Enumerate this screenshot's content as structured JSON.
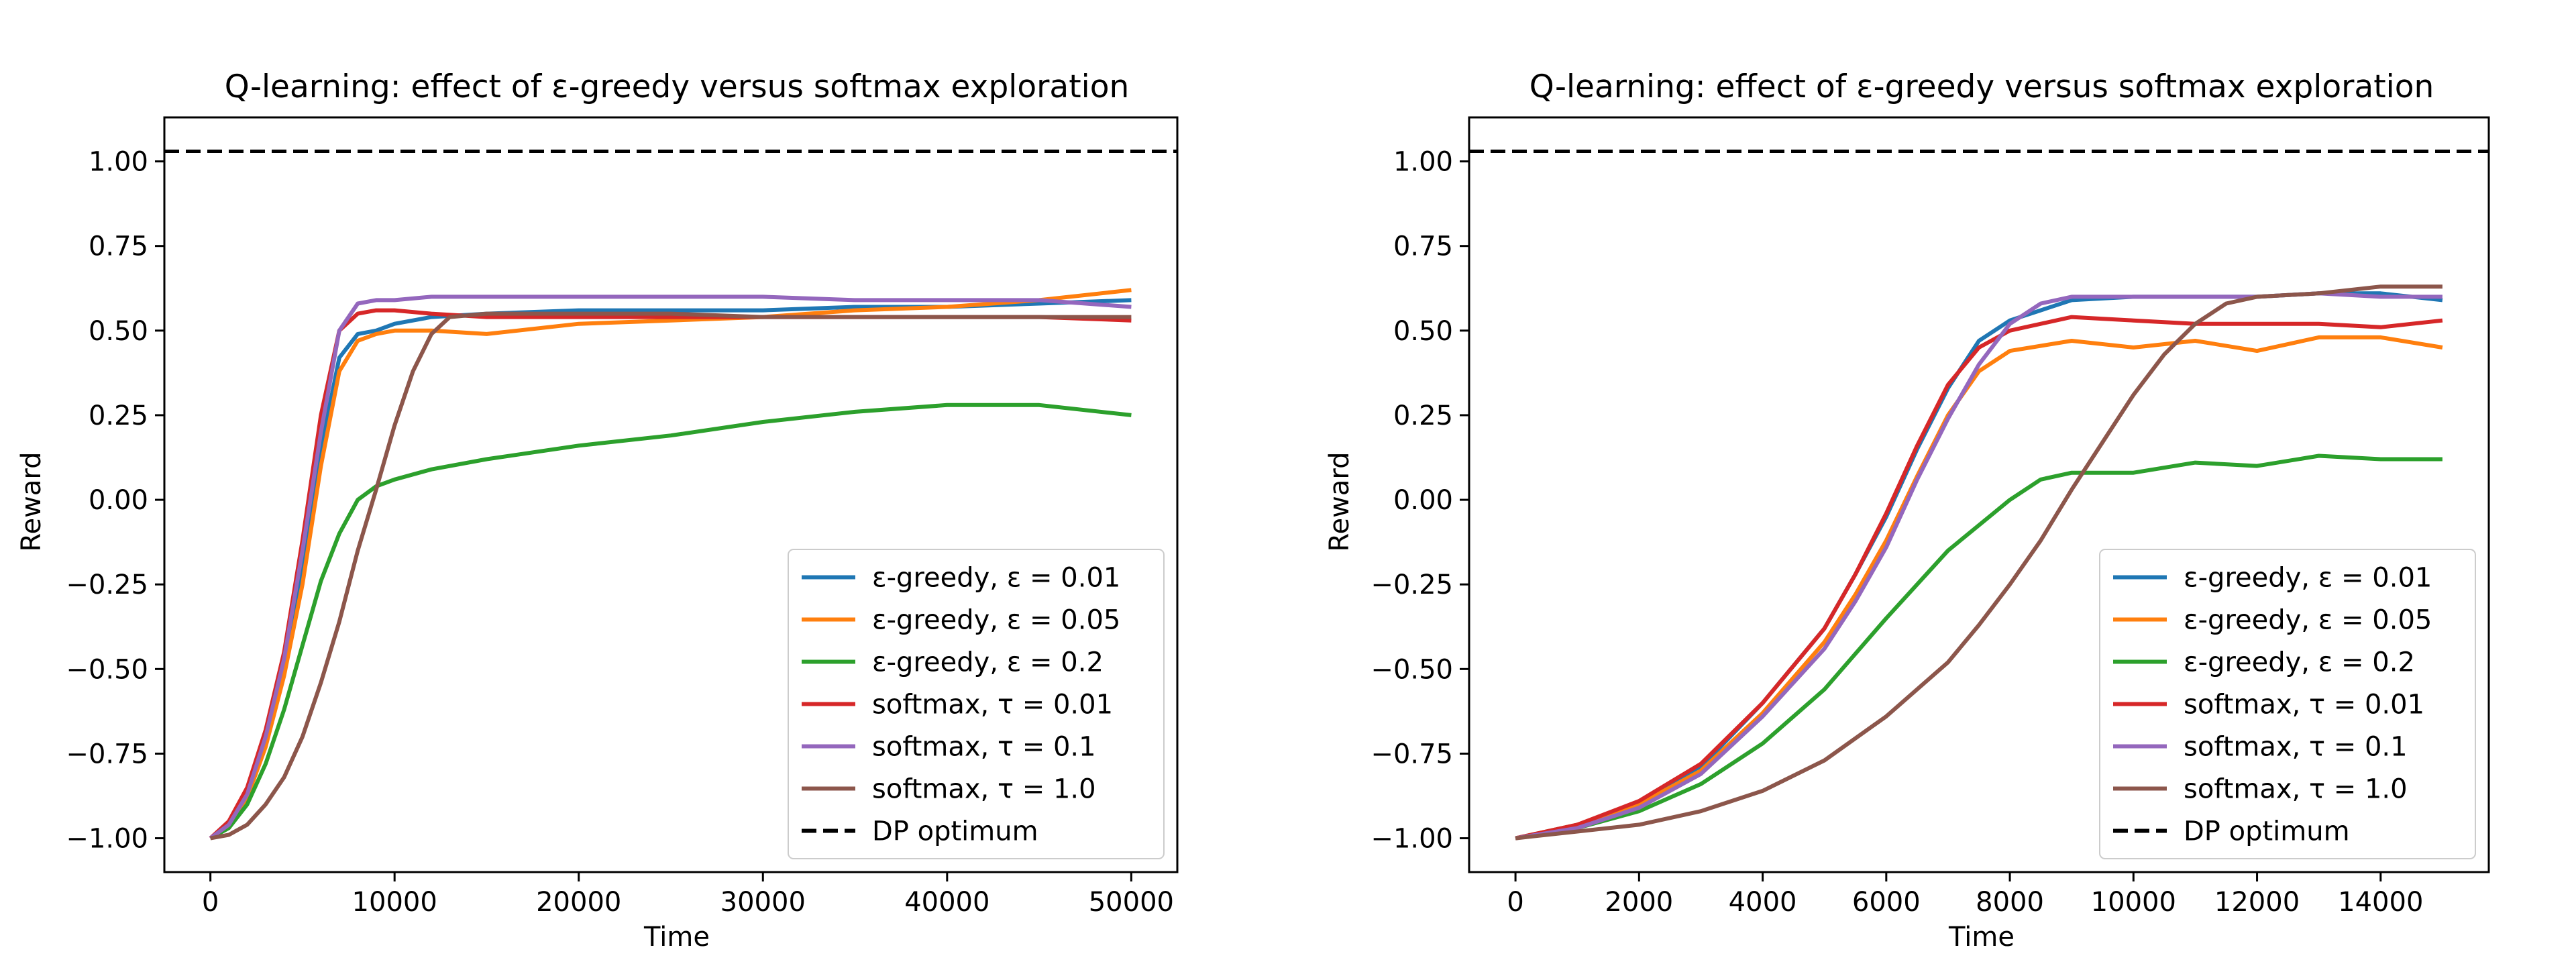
{
  "figure": {
    "background": "#ffffff"
  },
  "chart_data": [
    {
      "type": "line",
      "title": "Q-learning: effect of ε-greedy versus softmax exploration",
      "xlabel": "Time",
      "ylabel": "Reward",
      "xlim": [
        -2500,
        52500
      ],
      "ylim": [
        -1.1,
        1.13
      ],
      "xticks": [
        0,
        10000,
        20000,
        30000,
        40000,
        50000
      ],
      "xtick_labels": [
        "0",
        "10000",
        "20000",
        "30000",
        "40000",
        "50000"
      ],
      "yticks": [
        -1.0,
        -0.75,
        -0.5,
        -0.25,
        0.0,
        0.25,
        0.5,
        0.75,
        1.0
      ],
      "ytick_labels": [
        "−1.00",
        "−0.75",
        "−0.50",
        "−0.25",
        "0.00",
        "0.25",
        "0.50",
        "0.75",
        "1.00"
      ],
      "grid": false,
      "legend_position": "lower-right",
      "reference_line": {
        "name": "DP optimum",
        "y": 1.03,
        "color": "#000000",
        "dashed": true
      },
      "series": [
        {
          "name": "ε-greedy, ε = 0.01",
          "color": "#1f77b4",
          "x": [
            0,
            1000,
            2000,
            3000,
            4000,
            5000,
            6000,
            7000,
            8000,
            9000,
            10000,
            12000,
            15000,
            20000,
            25000,
            30000,
            35000,
            40000,
            45000,
            50000
          ],
          "y": [
            -1.0,
            -0.96,
            -0.88,
            -0.72,
            -0.5,
            -0.2,
            0.15,
            0.42,
            0.49,
            0.5,
            0.52,
            0.54,
            0.55,
            0.56,
            0.56,
            0.56,
            0.57,
            0.57,
            0.58,
            0.59
          ]
        },
        {
          "name": "ε-greedy, ε = 0.05",
          "color": "#ff7f0e",
          "x": [
            0,
            1000,
            2000,
            3000,
            4000,
            5000,
            6000,
            7000,
            8000,
            9000,
            10000,
            12000,
            15000,
            20000,
            25000,
            30000,
            35000,
            40000,
            45000,
            50000
          ],
          "y": [
            -1.0,
            -0.96,
            -0.88,
            -0.73,
            -0.52,
            -0.25,
            0.1,
            0.38,
            0.47,
            0.49,
            0.5,
            0.5,
            0.49,
            0.52,
            0.53,
            0.54,
            0.56,
            0.57,
            0.59,
            0.62
          ]
        },
        {
          "name": "ε-greedy, ε = 0.2",
          "color": "#2ca02c",
          "x": [
            0,
            1000,
            2000,
            3000,
            4000,
            5000,
            6000,
            7000,
            8000,
            9000,
            10000,
            12000,
            15000,
            20000,
            25000,
            30000,
            35000,
            40000,
            45000,
            50000
          ],
          "y": [
            -1.0,
            -0.97,
            -0.9,
            -0.78,
            -0.62,
            -0.43,
            -0.24,
            -0.1,
            0.0,
            0.04,
            0.06,
            0.09,
            0.12,
            0.16,
            0.19,
            0.23,
            0.26,
            0.28,
            0.28,
            0.25
          ]
        },
        {
          "name": "softmax, τ = 0.01",
          "color": "#d62728",
          "x": [
            0,
            1000,
            2000,
            3000,
            4000,
            5000,
            6000,
            7000,
            8000,
            9000,
            10000,
            12000,
            15000,
            20000,
            25000,
            30000,
            35000,
            40000,
            45000,
            50000
          ],
          "y": [
            -1.0,
            -0.95,
            -0.85,
            -0.68,
            -0.45,
            -0.12,
            0.25,
            0.5,
            0.55,
            0.56,
            0.56,
            0.55,
            0.54,
            0.54,
            0.54,
            0.54,
            0.54,
            0.54,
            0.54,
            0.53
          ]
        },
        {
          "name": "softmax, τ = 0.1",
          "color": "#9467bd",
          "x": [
            0,
            1000,
            2000,
            3000,
            4000,
            5000,
            6000,
            7000,
            8000,
            9000,
            10000,
            12000,
            15000,
            20000,
            25000,
            30000,
            35000,
            40000,
            45000,
            50000
          ],
          "y": [
            -1.0,
            -0.96,
            -0.87,
            -0.7,
            -0.47,
            -0.15,
            0.2,
            0.5,
            0.58,
            0.59,
            0.59,
            0.6,
            0.6,
            0.6,
            0.6,
            0.6,
            0.59,
            0.59,
            0.59,
            0.57
          ]
        },
        {
          "name": "softmax, τ = 1.0",
          "color": "#8c564b",
          "x": [
            0,
            1000,
            2000,
            3000,
            4000,
            5000,
            6000,
            7000,
            8000,
            9000,
            10000,
            11000,
            12000,
            13000,
            15000,
            20000,
            25000,
            30000,
            35000,
            40000,
            45000,
            50000
          ],
          "y": [
            -1.0,
            -0.99,
            -0.96,
            -0.9,
            -0.82,
            -0.7,
            -0.54,
            -0.36,
            -0.15,
            0.03,
            0.22,
            0.38,
            0.49,
            0.54,
            0.55,
            0.55,
            0.55,
            0.54,
            0.54,
            0.54,
            0.54,
            0.54
          ]
        }
      ]
    },
    {
      "type": "line",
      "title": "Q-learning: effect of ε-greedy versus softmax exploration",
      "xlabel": "Time",
      "ylabel": "Reward",
      "xlim": [
        -750,
        15750
      ],
      "ylim": [
        -1.1,
        1.13
      ],
      "xticks": [
        0,
        2000,
        4000,
        6000,
        8000,
        10000,
        12000,
        14000
      ],
      "xtick_labels": [
        "0",
        "2000",
        "4000",
        "6000",
        "8000",
        "10000",
        "12000",
        "14000"
      ],
      "yticks": [
        -1.0,
        -0.75,
        -0.5,
        -0.25,
        0.0,
        0.25,
        0.5,
        0.75,
        1.0
      ],
      "ytick_labels": [
        "−1.00",
        "−0.75",
        "−0.50",
        "−0.25",
        "0.00",
        "0.25",
        "0.50",
        "0.75",
        "1.00"
      ],
      "grid": false,
      "legend_position": "lower-right",
      "reference_line": {
        "name": "DP optimum",
        "y": 1.03,
        "color": "#000000",
        "dashed": true
      },
      "series": [
        {
          "name": "ε-greedy, ε = 0.01",
          "color": "#1f77b4",
          "x": [
            0,
            1000,
            2000,
            3000,
            4000,
            5000,
            5500,
            6000,
            6500,
            7000,
            7500,
            8000,
            9000,
            10000,
            11000,
            12000,
            13000,
            14000,
            15000
          ],
          "y": [
            -1.0,
            -0.96,
            -0.9,
            -0.79,
            -0.6,
            -0.38,
            -0.22,
            -0.05,
            0.15,
            0.33,
            0.47,
            0.53,
            0.59,
            0.6,
            0.6,
            0.6,
            0.61,
            0.61,
            0.59
          ]
        },
        {
          "name": "ε-greedy, ε = 0.05",
          "color": "#ff7f0e",
          "x": [
            0,
            1000,
            2000,
            3000,
            4000,
            5000,
            5500,
            6000,
            6500,
            7000,
            7500,
            8000,
            9000,
            10000,
            11000,
            12000,
            13000,
            14000,
            15000
          ],
          "y": [
            -1.0,
            -0.96,
            -0.9,
            -0.8,
            -0.63,
            -0.42,
            -0.28,
            -0.12,
            0.07,
            0.25,
            0.38,
            0.44,
            0.47,
            0.45,
            0.47,
            0.44,
            0.48,
            0.48,
            0.45
          ]
        },
        {
          "name": "ε-greedy, ε = 0.2",
          "color": "#2ca02c",
          "x": [
            0,
            1000,
            2000,
            3000,
            4000,
            5000,
            6000,
            7000,
            8000,
            8500,
            9000,
            10000,
            11000,
            12000,
            13000,
            14000,
            15000
          ],
          "y": [
            -1.0,
            -0.97,
            -0.92,
            -0.84,
            -0.72,
            -0.56,
            -0.35,
            -0.15,
            0.0,
            0.06,
            0.08,
            0.08,
            0.11,
            0.1,
            0.13,
            0.12,
            0.12
          ]
        },
        {
          "name": "softmax, τ = 0.01",
          "color": "#d62728",
          "x": [
            0,
            1000,
            2000,
            3000,
            4000,
            5000,
            5500,
            6000,
            6500,
            7000,
            7500,
            8000,
            9000,
            10000,
            11000,
            12000,
            13000,
            14000,
            15000
          ],
          "y": [
            -1.0,
            -0.96,
            -0.89,
            -0.78,
            -0.6,
            -0.38,
            -0.22,
            -0.04,
            0.16,
            0.34,
            0.45,
            0.5,
            0.54,
            0.53,
            0.52,
            0.52,
            0.52,
            0.51,
            0.53
          ]
        },
        {
          "name": "softmax, τ = 0.1",
          "color": "#9467bd",
          "x": [
            0,
            1000,
            2000,
            3000,
            4000,
            5000,
            5500,
            6000,
            6500,
            7000,
            7500,
            8000,
            8500,
            9000,
            10000,
            11000,
            12000,
            13000,
            14000,
            15000
          ],
          "y": [
            -1.0,
            -0.97,
            -0.91,
            -0.81,
            -0.64,
            -0.44,
            -0.3,
            -0.14,
            0.06,
            0.24,
            0.4,
            0.52,
            0.58,
            0.6,
            0.6,
            0.6,
            0.6,
            0.61,
            0.6,
            0.6
          ]
        },
        {
          "name": "softmax, τ = 1.0",
          "color": "#8c564b",
          "x": [
            0,
            1000,
            2000,
            3000,
            4000,
            5000,
            6000,
            7000,
            7500,
            8000,
            8500,
            9000,
            9500,
            10000,
            10500,
            11000,
            11500,
            12000,
            13000,
            14000,
            15000
          ],
          "y": [
            -1.0,
            -0.98,
            -0.96,
            -0.92,
            -0.86,
            -0.77,
            -0.64,
            -0.48,
            -0.37,
            -0.25,
            -0.12,
            0.03,
            0.17,
            0.31,
            0.43,
            0.52,
            0.58,
            0.6,
            0.61,
            0.63,
            0.63
          ]
        }
      ]
    }
  ]
}
